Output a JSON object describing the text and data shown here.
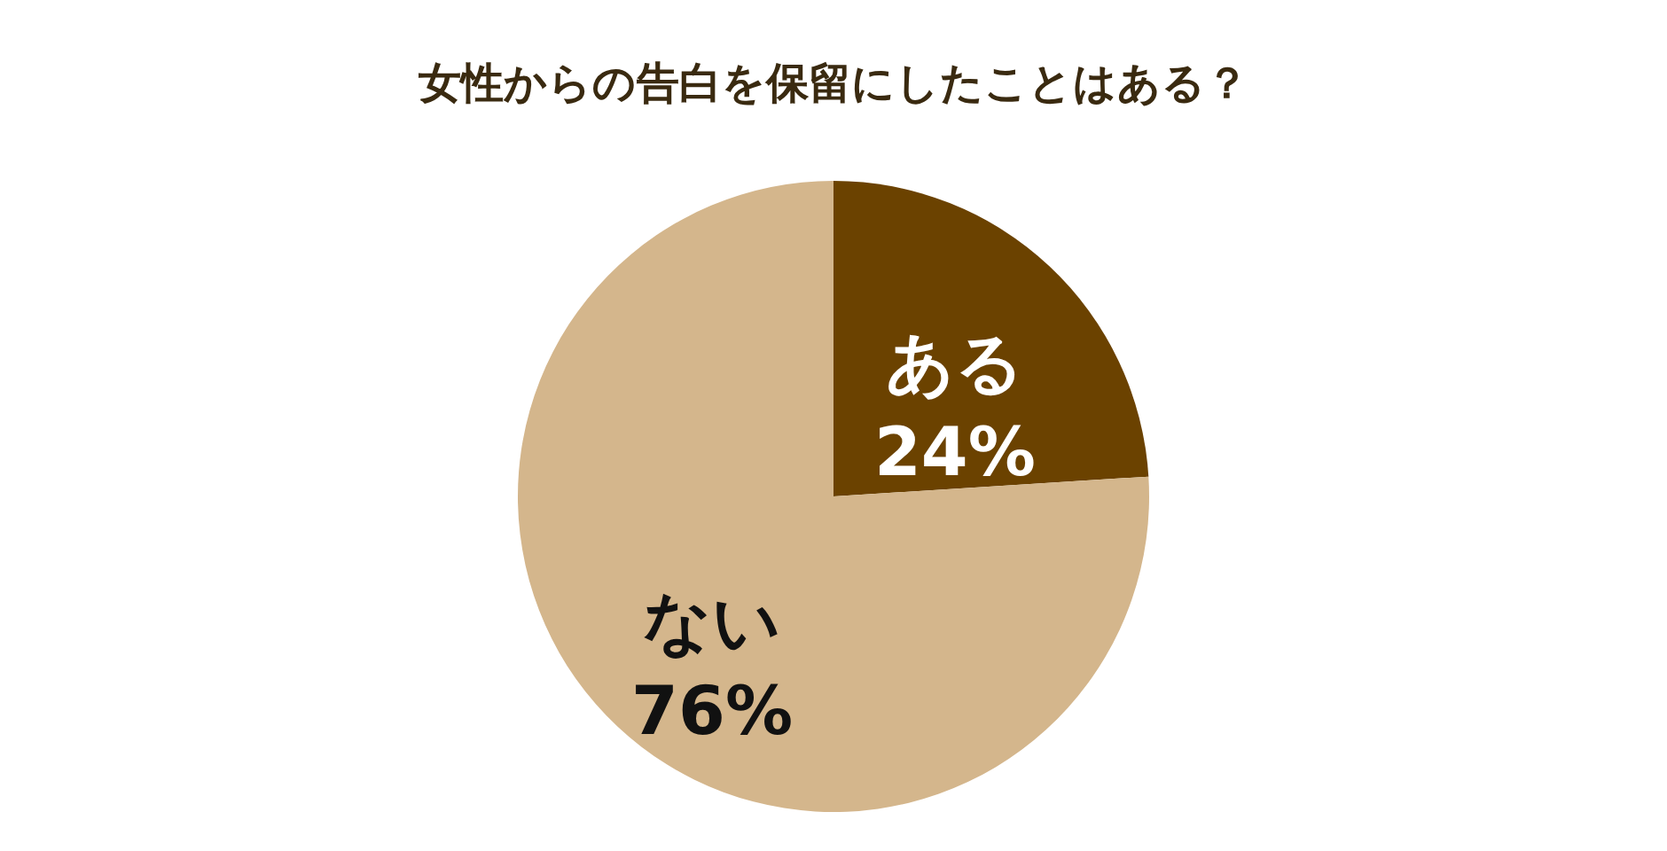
{
  "chart_data": {
    "type": "pie",
    "title": "女性からの告白を保留にしたことはある？",
    "categories": [
      "ある",
      "ない"
    ],
    "values": [
      24,
      76
    ],
    "value_labels": [
      "24%",
      "76%"
    ],
    "colors": [
      "#6b4200",
      "#d4b68c"
    ],
    "legend": false
  }
}
